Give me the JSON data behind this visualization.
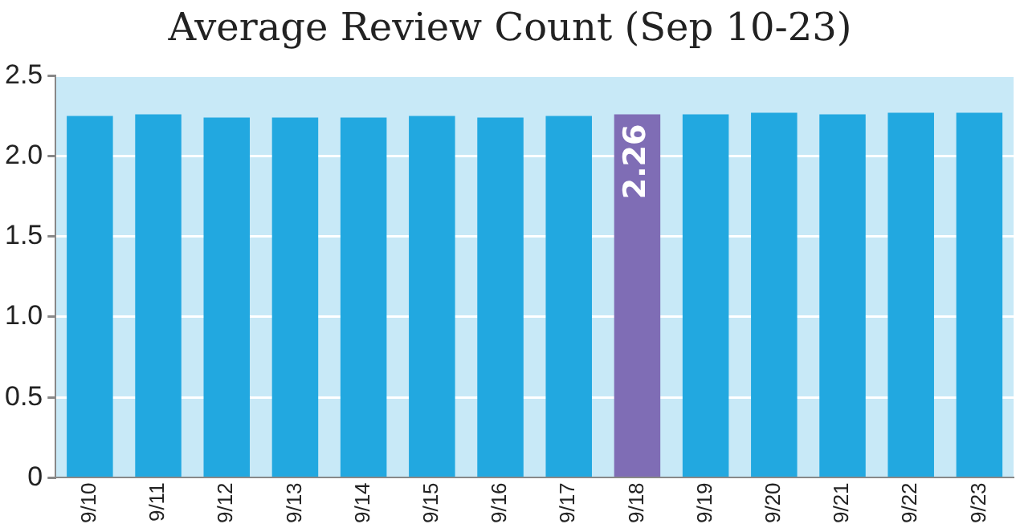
{
  "chart_data": {
    "type": "bar",
    "title": "Average Review Count (Sep 10-23)",
    "categories": [
      "9/10",
      "9/11",
      "9/12",
      "9/13",
      "9/14",
      "9/15",
      "9/16",
      "9/17",
      "9/18",
      "9/19",
      "9/20",
      "9/21",
      "9/22",
      "9/23"
    ],
    "values": [
      2.25,
      2.26,
      2.24,
      2.24,
      2.24,
      2.25,
      2.24,
      2.25,
      2.26,
      2.26,
      2.27,
      2.26,
      2.27,
      2.27
    ],
    "colors": [
      "#22a8e0",
      "#22a8e0",
      "#22a8e0",
      "#22a8e0",
      "#22a8e0",
      "#22a8e0",
      "#22a8e0",
      "#22a8e0",
      "#7f6db5",
      "#22a8e0",
      "#22a8e0",
      "#22a8e0",
      "#22a8e0",
      "#22a8e0"
    ],
    "value_labels": [
      null,
      null,
      null,
      null,
      null,
      null,
      null,
      null,
      "2.26",
      null,
      null,
      null,
      null,
      null
    ],
    "ylim": [
      0,
      2.5
    ],
    "yticks": [
      0,
      {
        "value": 0.5,
        "label": "0.5"
      },
      {
        "value": 1,
        "label": "1.0"
      },
      {
        "value": 1.5,
        "label": "1.5"
      },
      {
        "value": 2,
        "label": "2.0"
      },
      {
        "value": 2.5,
        "label": "2.5"
      }
    ],
    "bands": [
      {
        "axis": "y",
        "from": 0,
        "to": 2.5,
        "color": "#c8e9f7"
      }
    ],
    "grid": "y",
    "legend": false
  }
}
